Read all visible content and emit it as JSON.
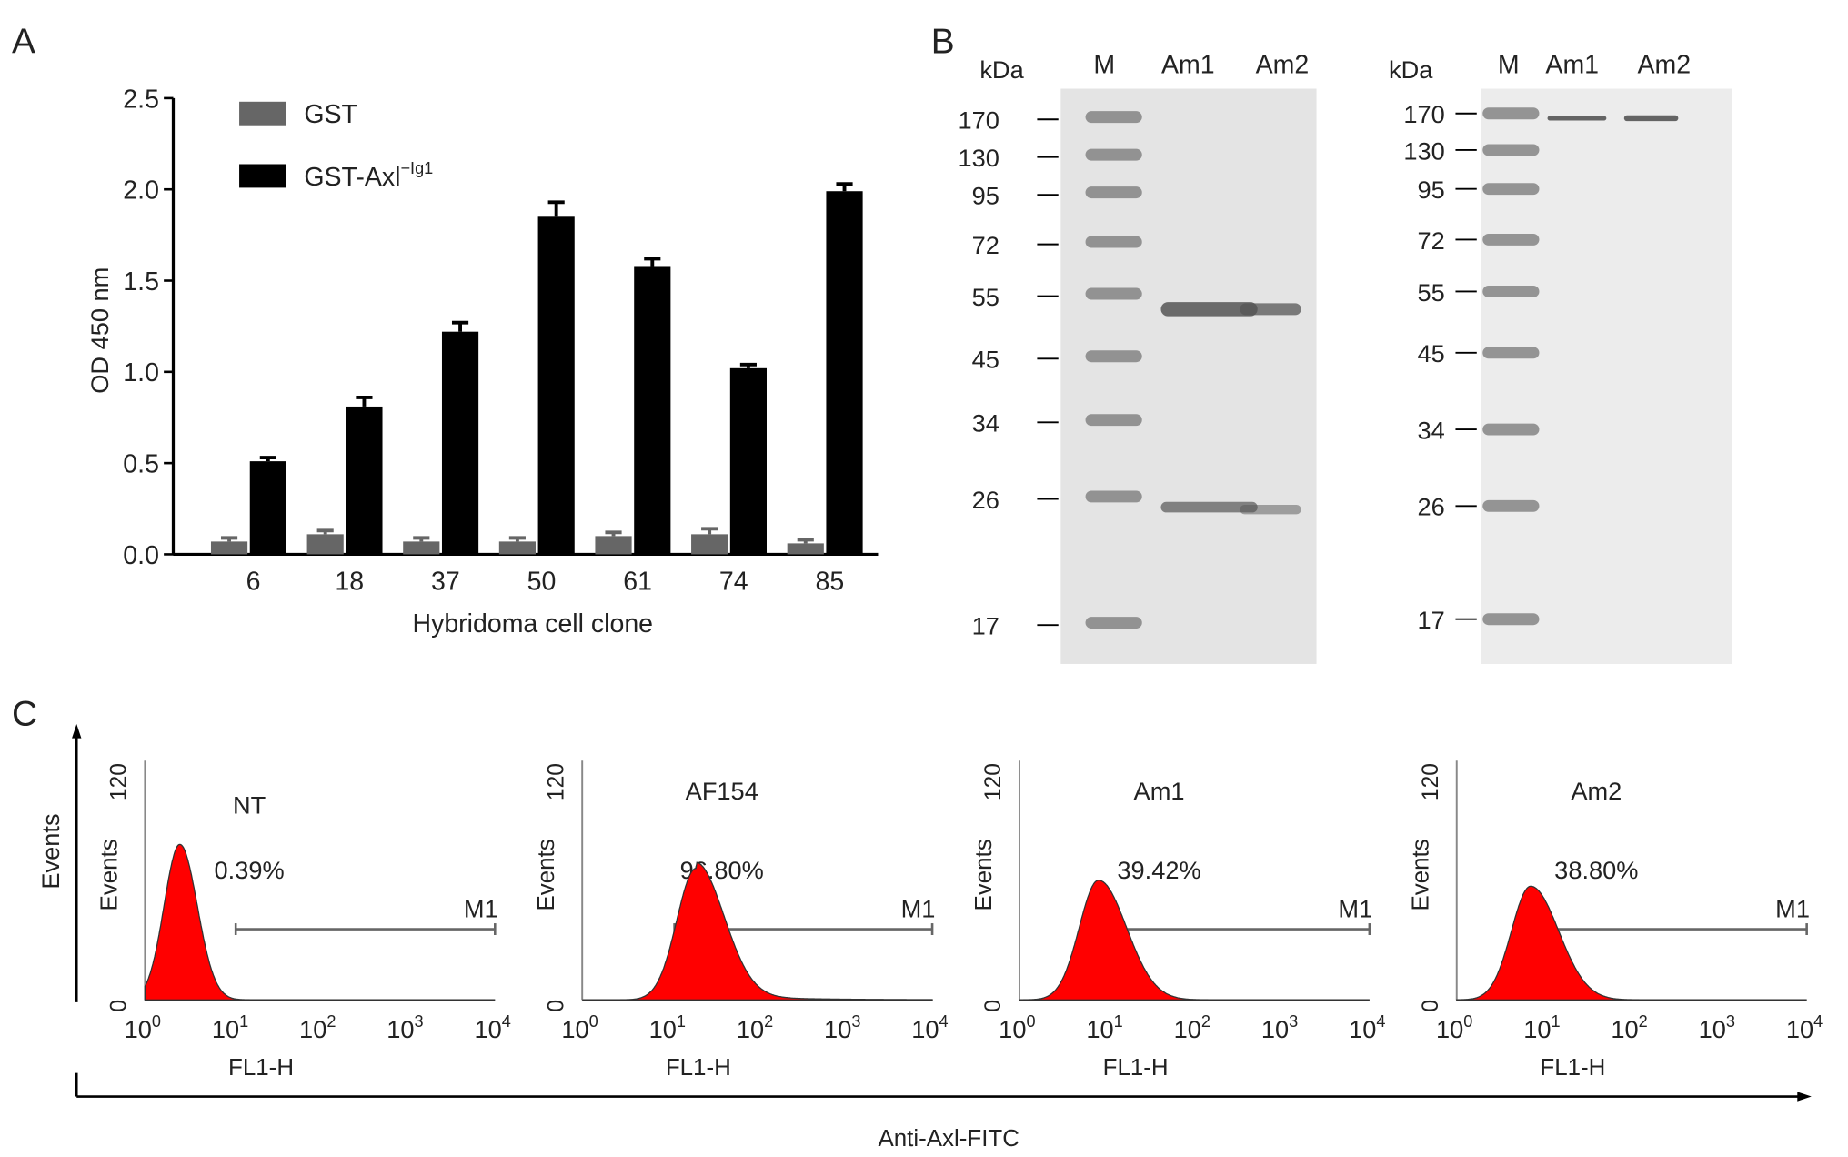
{
  "panel_labels": {
    "a": "A",
    "b": "B",
    "c": "C"
  },
  "chart_data": [
    {
      "type": "bar",
      "panel": "A",
      "xlabel": "Hybridoma cell clone",
      "ylabel": "OD 450 nm",
      "ylim": [
        0,
        2.5
      ],
      "yticks": [
        "0.0",
        "0.5",
        "1.0",
        "1.5",
        "2.0",
        "2.5"
      ],
      "categories": [
        "6",
        "18",
        "37",
        "50",
        "61",
        "74",
        "85"
      ],
      "legend_position": "top-left",
      "series": [
        {
          "name": "GST",
          "sup": "",
          "color": "#666666",
          "values": [
            0.07,
            0.11,
            0.07,
            0.07,
            0.1,
            0.11,
            0.06
          ],
          "errors": [
            0.02,
            0.02,
            0.02,
            0.02,
            0.02,
            0.03,
            0.02
          ]
        },
        {
          "name": "GST-Axl",
          "sup": "−Ig1",
          "color": "#000000",
          "values": [
            0.51,
            0.81,
            1.22,
            1.85,
            1.58,
            1.02,
            1.99
          ],
          "errors": [
            0.02,
            0.05,
            0.05,
            0.08,
            0.04,
            0.02,
            0.04
          ]
        }
      ]
    },
    {
      "type": "gel",
      "panel": "B",
      "unit_label": "kDa",
      "gels": [
        {
          "lanes": [
            "M",
            "Am1",
            "Am2"
          ],
          "markers": [
            "170",
            "130",
            "95",
            "72",
            "55",
            "45",
            "34",
            "26",
            "17"
          ]
        },
        {
          "lanes": [
            "M",
            "Am1",
            "Am2"
          ],
          "markers": [
            "170",
            "130",
            "95",
            "72",
            "55",
            "45",
            "34",
            "26",
            "17"
          ]
        }
      ]
    },
    {
      "type": "area",
      "panel": "C",
      "outer_ylabel": "Events",
      "outer_xlabel": "Anti-Axl-FITC",
      "ylabel": "Events",
      "xlabel": "FL1-H",
      "x_scale": "log",
      "xlim": [
        1,
        10000
      ],
      "ylim": [
        0,
        120
      ],
      "yticks": [
        "0",
        "120"
      ],
      "xticks": [
        "10",
        "10",
        "10",
        "10",
        "10"
      ],
      "xtick_exponents": [
        "0",
        "1",
        "2",
        "3",
        "4"
      ],
      "gate_label": "M1",
      "fill_color": "#ff0000",
      "histograms": [
        {
          "title": "NT",
          "percent": "0.39%",
          "peak_fl1": 2.5,
          "peak_events": 78
        },
        {
          "title": "AF154",
          "percent": "96.80%",
          "peak_fl1": 20,
          "peak_events": 66
        },
        {
          "title": "Am1",
          "percent": "39.42%",
          "peak_fl1": 8,
          "peak_events": 60
        },
        {
          "title": "Am2",
          "percent": "38.80%",
          "peak_fl1": 7,
          "peak_events": 57
        }
      ]
    }
  ]
}
